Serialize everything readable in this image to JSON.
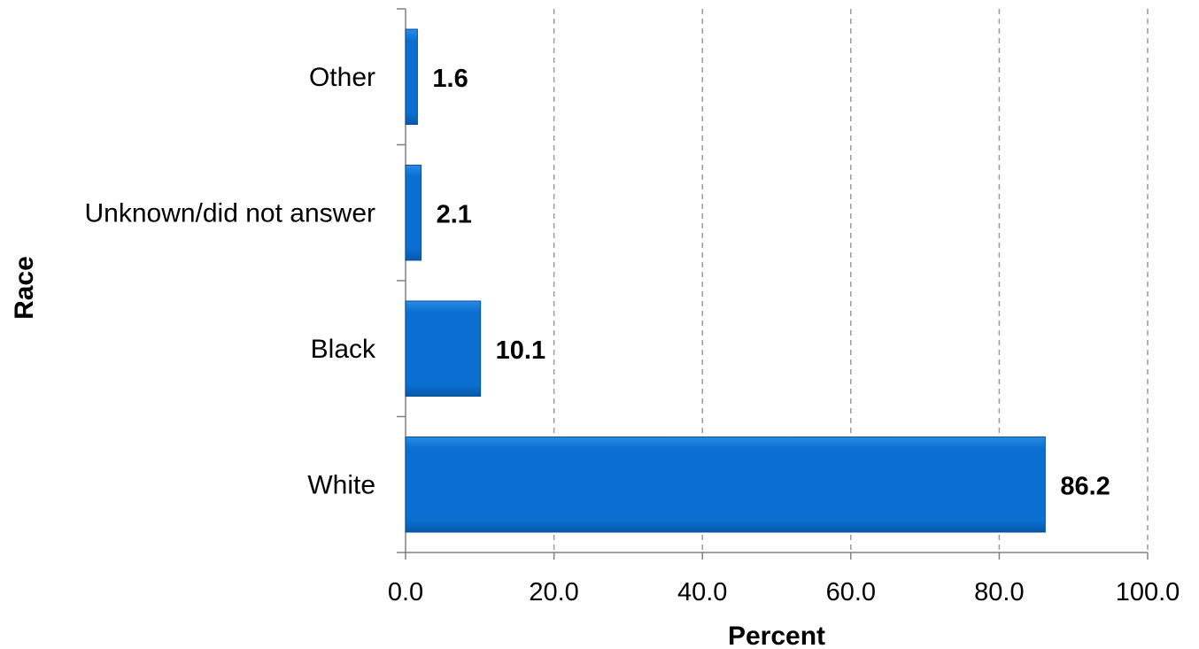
{
  "chart_data": {
    "type": "bar",
    "orientation": "horizontal",
    "categories": [
      "White",
      "Black",
      "Unknown/did not answer",
      "Other"
    ],
    "values": [
      86.2,
      10.1,
      2.1,
      1.6
    ],
    "data_labels": [
      "86.2",
      "10.1",
      "2.1",
      "1.6"
    ],
    "xlabel": "Percent",
    "ylabel": "Race",
    "xlim": [
      0,
      100
    ],
    "xticks": [
      0,
      20,
      40,
      60,
      80,
      100
    ],
    "xtick_labels": [
      "0.0",
      "20.0",
      "40.0",
      "60.0",
      "80.0",
      "100.0"
    ],
    "grid": "vertical dashed",
    "legend": "none"
  },
  "colors": {
    "bar_fill": "#0a6fd0",
    "bar_edge": "#0a4f95",
    "grid": "#9a9a9a",
    "axis": "#808080"
  }
}
